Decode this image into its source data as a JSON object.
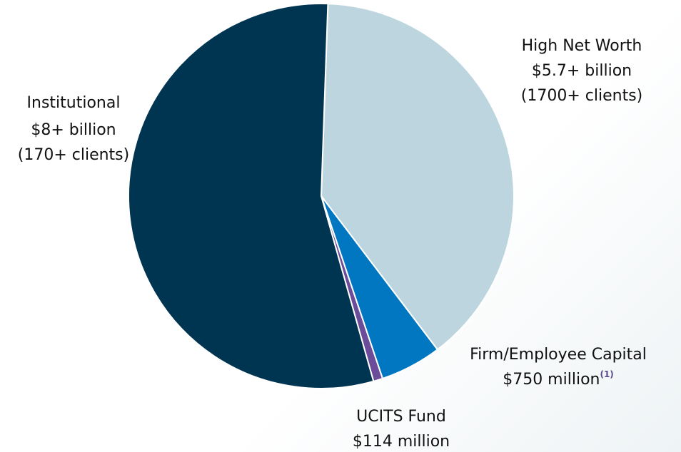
{
  "chart_data": {
    "type": "pie",
    "categories": [
      "High Net Worth",
      "Firm/Employee Capital",
      "UCITS Fund",
      "Institutional"
    ],
    "values": [
      5700000000,
      750000000,
      114000000,
      8000000000
    ],
    "value_labels": [
      "$5.7+ billion",
      "$750 million",
      "$114 million",
      "$8+ billion"
    ],
    "client_counts": [
      "(1700+ clients)",
      null,
      null,
      "(170+ clients)"
    ],
    "footnote_markers": [
      null,
      "(1)",
      null,
      null
    ],
    "colors": [
      "#bcd5df",
      "#0077c0",
      "#6b4c9a",
      "#003552"
    ]
  }
}
